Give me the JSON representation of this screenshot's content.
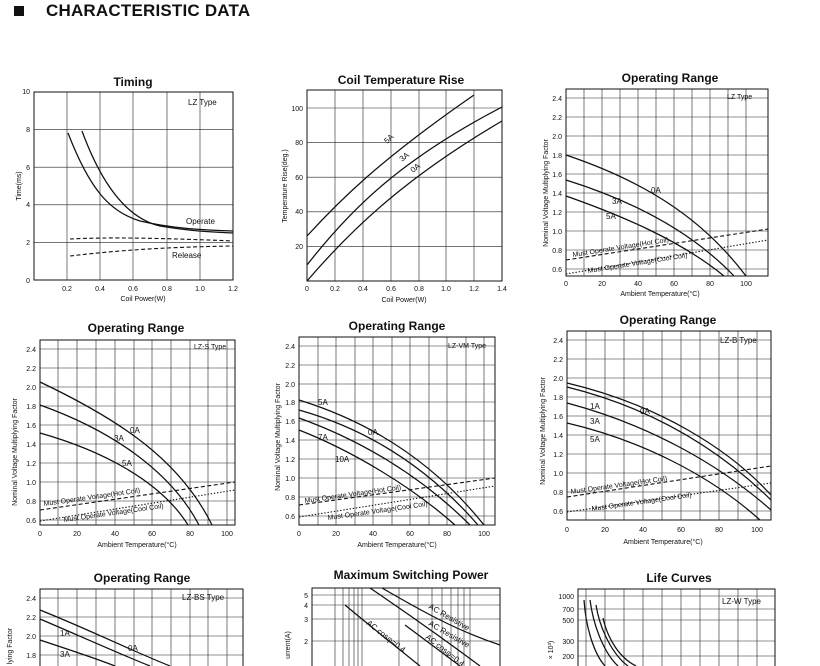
{
  "section": {
    "title": "CHARACTERISTIC DATA"
  },
  "timing": {
    "title": "Timing",
    "type_label": "LZ Type",
    "xlabel": "Coil Power(W)",
    "ylabel": "Time(ms)",
    "xticks": [
      "0.2",
      "0.4",
      "0.6",
      "0.8",
      "1.0",
      "1.2"
    ],
    "yticks": [
      "0",
      "2",
      "4",
      "6",
      "8",
      "10"
    ],
    "labels": [
      "Operate",
      "Release"
    ]
  },
  "coil_temp": {
    "title": "Coil Temperature Rise",
    "xlabel": "Coil Power(W)",
    "ylabel": "Temperature Rise(deg.)",
    "xticks": [
      "0",
      "0.2",
      "0.4",
      "0.6",
      "0.8",
      "1.0",
      "1.2",
      "1.4"
    ],
    "yticks": [
      "20",
      "40",
      "60",
      "80",
      "100"
    ],
    "labels": [
      "5A",
      "3A",
      "0A"
    ]
  },
  "or_lz": {
    "title": "Operating Range",
    "type_label": "LZ Type",
    "xlabel": "Ambient Temperature(°C)",
    "ylabel": "Nominal Voltage Multiplying Factor",
    "xticks": [
      "0",
      "20",
      "40",
      "60",
      "80",
      "100"
    ],
    "yticks": [
      "0.6",
      "0.8",
      "1.0",
      "1.2",
      "1.4",
      "1.6",
      "1.8",
      "2.0",
      "2.2",
      "2.4"
    ],
    "labels": [
      "0A",
      "3A",
      "5A",
      "Must Operate Voltage(Hot Coil)",
      "Must Operate Voltage(Cool Coil)"
    ]
  },
  "or_lzs": {
    "title": "Operating Range",
    "type_label": "LZ-S Type",
    "xlabel": "Ambient Temperature(°C)",
    "ylabel": "Nominal Voltage Multiplying Factor",
    "xticks": [
      "0",
      "20",
      "40",
      "60",
      "80",
      "100"
    ],
    "yticks": [
      "0.6",
      "0.8",
      "1.0",
      "1.2",
      "1.4",
      "1.6",
      "1.8",
      "2.0",
      "2.2",
      "2.4"
    ],
    "labels": [
      "0A",
      "3A",
      "5A",
      "Must Operate Voltage(Hot Coil)",
      "Must Operate Voltage(Cool Coil)"
    ]
  },
  "or_lzvm": {
    "title": "Operating Range",
    "type_label": "LZ-VM Type",
    "xlabel": "Ambient Temperature(°C)",
    "ylabel": "Nominal Voltage Multiplying Factor",
    "xticks": [
      "0",
      "20",
      "40",
      "60",
      "80",
      "100"
    ],
    "yticks": [
      "0.6",
      "0.8",
      "1.0",
      "1.2",
      "1.4",
      "1.6",
      "1.8",
      "2.0",
      "2.2",
      "2.4"
    ],
    "labels": [
      "5A",
      "0A",
      "7A",
      "10A",
      "Must Operate Voltage(Hot Coil)",
      "Must Operate Voltage(Cool Coil)"
    ]
  },
  "or_lzb": {
    "title": "Operating Range",
    "type_label": "LZ-B Type",
    "xlabel": "Ambient Temperature(°C)",
    "ylabel": "Nominal Voltage Multiplying Factor",
    "xticks": [
      "0",
      "20",
      "40",
      "60",
      "80",
      "100"
    ],
    "yticks": [
      "0.6",
      "0.8",
      "1.0",
      "1.2",
      "1.4",
      "1.6",
      "1.8",
      "2.0",
      "2.2",
      "2.4"
    ],
    "labels": [
      "1A",
      "0A",
      "3A",
      "5A",
      "Must Operate Voltage(Hot Coil)",
      "Must Operate Voltage(Cool Coil)"
    ]
  },
  "or_lzbs": {
    "title": "Operating Range",
    "type_label": "LZ-BS Type",
    "ylabel": "lying Factor",
    "yticks": [
      "1.8",
      "2.0",
      "2.2",
      "2.4"
    ],
    "labels": [
      "1A",
      "0A",
      "3A"
    ]
  },
  "max_switch": {
    "title": "Maximum Switching Power",
    "ylabel": "urrent(A)",
    "yticks": [
      "2",
      "3",
      "4",
      "5"
    ],
    "labels": [
      "AC Resistive",
      "AC Resistive",
      "AC cosφ=0.4",
      "AC cosφ=0.4"
    ]
  },
  "life": {
    "title": "Life Curves",
    "type_label": "LZ-W Type",
    "ylabel": "× 10³)",
    "yticks": [
      "1000",
      "700",
      "500",
      "300",
      "200"
    ]
  }
}
